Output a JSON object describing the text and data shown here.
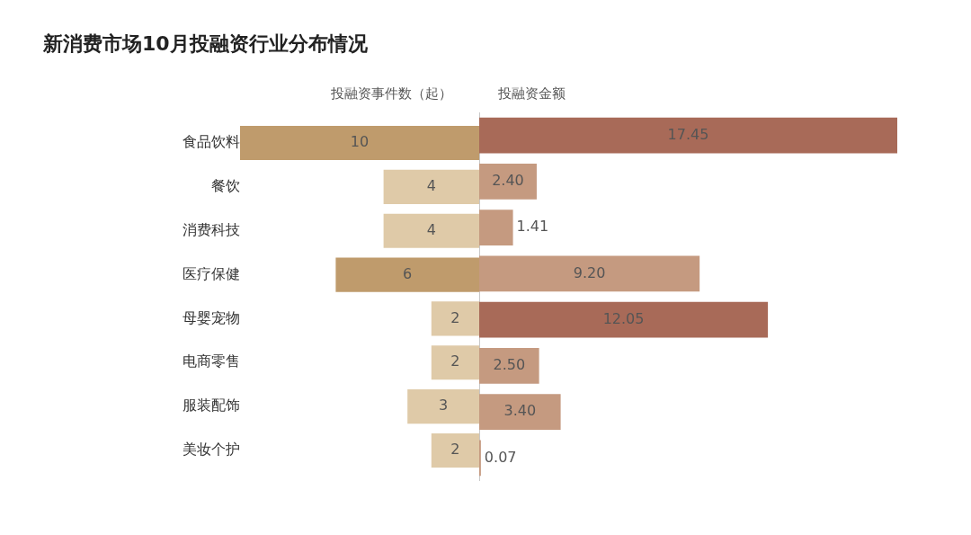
{
  "chart_data": [
    {
      "type": "bar",
      "orientation": "horizontal",
      "title": "新消费市场10月投融资行业分布情况",
      "subtitle": "投融资事件数（起）",
      "categories": [
        "食品饮料",
        "餐饮",
        "消费科技",
        "医疗保健",
        "母婴宠物",
        "电商零售",
        "服装配饰",
        "美妆个护"
      ],
      "values": [
        10,
        4,
        4,
        6,
        2,
        2,
        3,
        2
      ],
      "colors": [
        "#bf9b6c",
        "#dfcaa8",
        "#dfcaa8",
        "#bf9b6c",
        "#dfcaa8",
        "#dfcaa8",
        "#dfcaa8",
        "#dfcaa8"
      ],
      "xlim": [
        10,
        0
      ],
      "data_labels": true,
      "tick_labels": "y",
      "grid": false,
      "legend": false
    },
    {
      "type": "bar",
      "orientation": "horizontal",
      "title": "投融资金额",
      "categories": [
        null,
        null,
        null,
        null,
        null,
        null,
        null,
        null
      ],
      "values": [
        17.45,
        2.4,
        1.41,
        9.2,
        12.05,
        2.5,
        3.4,
        0.07
      ],
      "value_labels": [
        "17.45",
        "2.40",
        "1.41",
        "9.20",
        "12.05",
        "2.50",
        "3.40",
        "0.07"
      ],
      "colors": [
        "#a86a58",
        "#c59a80",
        "#c59a80",
        "#c59a80",
        "#a86a58",
        "#c59a80",
        "#c59a80",
        "#c59a80"
      ],
      "xlim": [
        0,
        17.45
      ],
      "tick_labels": false,
      "grid": false,
      "legend": false
    }
  ]
}
